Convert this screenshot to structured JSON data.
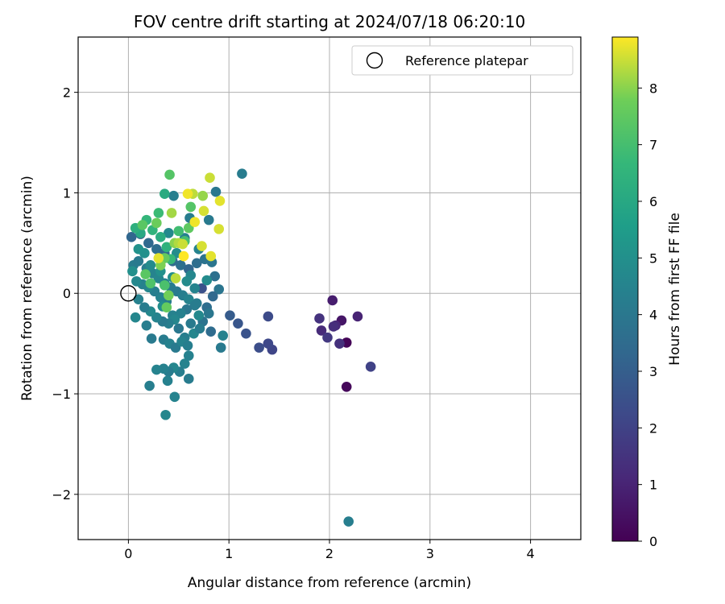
{
  "chart_data": {
    "type": "scatter",
    "title": "FOV centre drift starting at 2024/07/18 06:20:10",
    "xlabel": "Angular distance from reference (arcmin)",
    "ylabel": "Rotation from reference (arcmin)",
    "xlim": [
      -0.5,
      4.5
    ],
    "ylim": [
      -2.45,
      2.55
    ],
    "xticks": [
      0,
      1,
      2,
      3,
      4
    ],
    "yticks": [
      -2,
      -1,
      0,
      1,
      2
    ],
    "xtick_labels": [
      "0",
      "1",
      "2",
      "3",
      "4"
    ],
    "ytick_labels": [
      "−2",
      "−1",
      "0",
      "1",
      "2"
    ],
    "grid": true,
    "colormap": "viridis",
    "colorbar": {
      "label": "Hours from first FF file",
      "range": [
        0,
        8.9
      ],
      "ticks": [
        0,
        1,
        2,
        3,
        4,
        5,
        6,
        7,
        8
      ],
      "tick_labels": [
        "0",
        "1",
        "2",
        "3",
        "4",
        "5",
        "6",
        "7",
        "8"
      ]
    },
    "legend": {
      "position": "top-right",
      "label": "Reference platepar",
      "marker": "open-circle"
    },
    "reference_point": {
      "x": 0,
      "y": 0
    },
    "series": [
      {
        "name": "FOV centre drift",
        "points": [
          {
            "x": 2.17,
            "y": -0.49,
            "h": 0.1
          },
          {
            "x": 2.17,
            "y": -0.93,
            "h": 0.2
          },
          {
            "x": 2.12,
            "y": -0.27,
            "h": 0.6
          },
          {
            "x": 2.03,
            "y": -0.07,
            "h": 0.8
          },
          {
            "x": 2.28,
            "y": -0.23,
            "h": 1.0
          },
          {
            "x": 2.06,
            "y": -0.32,
            "h": 1.1
          },
          {
            "x": 1.92,
            "y": -0.37,
            "h": 1.2
          },
          {
            "x": 2.1,
            "y": -0.5,
            "h": 1.4
          },
          {
            "x": 1.9,
            "y": -0.25,
            "h": 1.5
          },
          {
            "x": 1.98,
            "y": -0.44,
            "h": 1.7
          },
          {
            "x": 2.04,
            "y": -0.33,
            "h": 1.3
          },
          {
            "x": 2.41,
            "y": -0.73,
            "h": 2.0
          },
          {
            "x": 1.43,
            "y": -0.56,
            "h": 2.1
          },
          {
            "x": 1.39,
            "y": -0.5,
            "h": 2.2
          },
          {
            "x": 1.39,
            "y": -0.23,
            "h": 2.3
          },
          {
            "x": 1.3,
            "y": -0.54,
            "h": 2.4
          },
          {
            "x": 1.17,
            "y": -0.4,
            "h": 2.6
          },
          {
            "x": 1.09,
            "y": -0.3,
            "h": 2.7
          },
          {
            "x": 1.01,
            "y": -0.22,
            "h": 2.9
          },
          {
            "x": 0.73,
            "y": 0.05,
            "h": 2.5
          },
          {
            "x": 0.12,
            "y": 0.59,
            "h": 3.2
          },
          {
            "x": 0.03,
            "y": 0.56,
            "h": 3.3
          },
          {
            "x": 0.2,
            "y": 0.5,
            "h": 3.4
          },
          {
            "x": 0.28,
            "y": 0.44,
            "h": 3.6
          },
          {
            "x": 0.36,
            "y": 0.4,
            "h": 3.4
          },
          {
            "x": 0.44,
            "y": 0.32,
            "h": 3.5
          },
          {
            "x": 0.52,
            "y": 0.28,
            "h": 3.7
          },
          {
            "x": 0.6,
            "y": 0.24,
            "h": 3.3
          },
          {
            "x": 0.68,
            "y": 0.3,
            "h": 3.6
          },
          {
            "x": 0.76,
            "y": 0.34,
            "h": 3.8
          },
          {
            "x": 0.83,
            "y": 0.31,
            "h": 3.9
          },
          {
            "x": 0.86,
            "y": 0.17,
            "h": 3.7
          },
          {
            "x": 0.9,
            "y": 0.04,
            "h": 3.9
          },
          {
            "x": 0.84,
            "y": -0.03,
            "h": 3.4
          },
          {
            "x": 0.78,
            "y": -0.14,
            "h": 3.6
          },
          {
            "x": 0.8,
            "y": -0.2,
            "h": 4.0
          },
          {
            "x": 0.82,
            "y": -0.38,
            "h": 3.5
          },
          {
            "x": 0.74,
            "y": -0.28,
            "h": 3.8
          },
          {
            "x": 0.68,
            "y": -0.1,
            "h": 4.2
          },
          {
            "x": 0.62,
            "y": -0.3,
            "h": 4.1
          },
          {
            "x": 0.56,
            "y": -0.44,
            "h": 4.3
          },
          {
            "x": 0.5,
            "y": -0.35,
            "h": 4.0
          },
          {
            "x": 0.44,
            "y": -0.22,
            "h": 4.4
          },
          {
            "x": 0.38,
            "y": -0.08,
            "h": 4.2
          },
          {
            "x": 0.32,
            "y": -0.04,
            "h": 4.5
          },
          {
            "x": 0.26,
            "y": 0.02,
            "h": 4.3
          },
          {
            "x": 0.2,
            "y": 0.06,
            "h": 4.6
          },
          {
            "x": 0.14,
            "y": 0.09,
            "h": 4.4
          },
          {
            "x": 0.08,
            "y": 0.12,
            "h": 4.7
          },
          {
            "x": 0.05,
            "y": 0.28,
            "h": 4.2
          },
          {
            "x": 0.1,
            "y": 0.32,
            "h": 4.1
          },
          {
            "x": 0.18,
            "y": 0.25,
            "h": 4.3
          },
          {
            "x": 0.24,
            "y": 0.2,
            "h": 4.5
          },
          {
            "x": 0.3,
            "y": 0.15,
            "h": 4.6
          },
          {
            "x": 0.36,
            "y": 0.1,
            "h": 4.4
          },
          {
            "x": 0.42,
            "y": 0.06,
            "h": 4.2
          },
          {
            "x": 0.48,
            "y": 0.02,
            "h": 4.1
          },
          {
            "x": 0.54,
            "y": -0.02,
            "h": 4.3
          },
          {
            "x": 0.6,
            "y": -0.06,
            "h": 4.5
          },
          {
            "x": 0.66,
            "y": -0.12,
            "h": 4.2
          },
          {
            "x": 0.58,
            "y": -0.16,
            "h": 4.0
          },
          {
            "x": 0.52,
            "y": -0.2,
            "h": 4.4
          },
          {
            "x": 0.46,
            "y": -0.26,
            "h": 4.6
          },
          {
            "x": 0.4,
            "y": -0.3,
            "h": 4.3
          },
          {
            "x": 0.34,
            "y": -0.28,
            "h": 4.1
          },
          {
            "x": 0.28,
            "y": -0.24,
            "h": 4.5
          },
          {
            "x": 0.22,
            "y": -0.18,
            "h": 4.7
          },
          {
            "x": 0.16,
            "y": -0.14,
            "h": 4.2
          },
          {
            "x": 0.1,
            "y": -0.06,
            "h": 4.4
          },
          {
            "x": 0.35,
            "y": -0.46,
            "h": 4.2
          },
          {
            "x": 0.41,
            "y": -0.5,
            "h": 4.4
          },
          {
            "x": 0.47,
            "y": -0.54,
            "h": 4.1
          },
          {
            "x": 0.53,
            "y": -0.48,
            "h": 4.5
          },
          {
            "x": 0.59,
            "y": -0.52,
            "h": 4.3
          },
          {
            "x": 0.65,
            "y": -0.4,
            "h": 4.6
          },
          {
            "x": 0.71,
            "y": -0.35,
            "h": 4.2
          },
          {
            "x": 0.6,
            "y": -0.62,
            "h": 4.4
          },
          {
            "x": 0.56,
            "y": -0.7,
            "h": 4.5
          },
          {
            "x": 0.51,
            "y": -0.78,
            "h": 4.3
          },
          {
            "x": 0.45,
            "y": -0.74,
            "h": 4.6
          },
          {
            "x": 0.4,
            "y": -0.78,
            "h": 4.2
          },
          {
            "x": 0.35,
            "y": -0.75,
            "h": 4.4
          },
          {
            "x": 0.28,
            "y": -0.76,
            "h": 4.5
          },
          {
            "x": 0.23,
            "y": -0.45,
            "h": 4.1
          },
          {
            "x": 0.18,
            "y": -0.32,
            "h": 4.3
          },
          {
            "x": 0.07,
            "y": -0.24,
            "h": 4.6
          },
          {
            "x": 0.39,
            "y": -0.87,
            "h": 4.4
          },
          {
            "x": 0.6,
            "y": -0.85,
            "h": 4.2
          },
          {
            "x": 0.46,
            "y": -1.03,
            "h": 4.5
          },
          {
            "x": 0.21,
            "y": -0.92,
            "h": 4.3
          },
          {
            "x": 0.37,
            "y": -1.21,
            "h": 4.6
          },
          {
            "x": 0.92,
            "y": -0.54,
            "h": 4.1
          },
          {
            "x": 0.94,
            "y": -0.42,
            "h": 4.4
          },
          {
            "x": 2.19,
            "y": -2.27,
            "h": 4.3
          },
          {
            "x": 1.13,
            "y": 1.19,
            "h": 4.2
          },
          {
            "x": 0.87,
            "y": 1.01,
            "h": 4.0
          },
          {
            "x": 0.45,
            "y": 0.97,
            "h": 4.3
          },
          {
            "x": 0.8,
            "y": 0.73,
            "h": 4.1
          },
          {
            "x": 0.61,
            "y": 0.75,
            "h": 4.2
          },
          {
            "x": 0.56,
            "y": 0.55,
            "h": 4.4
          },
          {
            "x": 0.7,
            "y": 0.44,
            "h": 4.5
          },
          {
            "x": 0.62,
            "y": 0.18,
            "h": 4.6
          },
          {
            "x": 0.66,
            "y": 0.05,
            "h": 4.5
          },
          {
            "x": 0.7,
            "y": -0.22,
            "h": 4.7
          },
          {
            "x": 0.58,
            "y": 0.12,
            "h": 4.8
          },
          {
            "x": 0.44,
            "y": 0.16,
            "h": 4.9
          },
          {
            "x": 0.32,
            "y": 0.22,
            "h": 5.0
          },
          {
            "x": 0.22,
            "y": 0.28,
            "h": 4.8
          },
          {
            "x": 0.16,
            "y": 0.4,
            "h": 5.0
          },
          {
            "x": 0.1,
            "y": 0.44,
            "h": 5.1
          },
          {
            "x": 0.04,
            "y": 0.22,
            "h": 5.0
          },
          {
            "x": 0.4,
            "y": 0.6,
            "h": 4.7
          },
          {
            "x": 0.48,
            "y": 0.4,
            "h": 4.9
          },
          {
            "x": 0.78,
            "y": 0.13,
            "h": 4.8
          },
          {
            "x": 0.34,
            "y": -0.13,
            "h": 4.9
          },
          {
            "x": 0.12,
            "y": 0.6,
            "h": 6.0
          },
          {
            "x": 0.07,
            "y": 0.65,
            "h": 6.3
          },
          {
            "x": 0.18,
            "y": 0.73,
            "h": 6.6
          },
          {
            "x": 0.36,
            "y": 0.99,
            "h": 6.1
          },
          {
            "x": 0.3,
            "y": 0.8,
            "h": 6.8
          },
          {
            "x": 0.24,
            "y": 0.63,
            "h": 6.5
          },
          {
            "x": 0.32,
            "y": 0.56,
            "h": 6.2
          },
          {
            "x": 0.38,
            "y": 0.46,
            "h": 6.4
          },
          {
            "x": 0.42,
            "y": 0.34,
            "h": 6.7
          },
          {
            "x": 0.5,
            "y": 0.62,
            "h": 6.9
          },
          {
            "x": 0.56,
            "y": 0.52,
            "h": 7.0
          },
          {
            "x": 0.41,
            "y": 1.18,
            "h": 7.3
          },
          {
            "x": 0.62,
            "y": 0.86,
            "h": 7.3
          },
          {
            "x": 0.6,
            "y": 0.65,
            "h": 7.5
          },
          {
            "x": 0.36,
            "y": 0.35,
            "h": 7.6
          },
          {
            "x": 0.14,
            "y": 0.68,
            "h": 7.4
          },
          {
            "x": 0.28,
            "y": 0.7,
            "h": 7.7
          },
          {
            "x": 0.22,
            "y": 0.1,
            "h": 7.2
          },
          {
            "x": 0.17,
            "y": 0.19,
            "h": 7.4
          },
          {
            "x": 0.36,
            "y": 0.08,
            "h": 7.1
          },
          {
            "x": 0.38,
            "y": -0.14,
            "h": 7.6
          },
          {
            "x": 0.4,
            "y": -0.02,
            "h": 7.8
          },
          {
            "x": 0.32,
            "y": 0.28,
            "h": 7.9
          },
          {
            "x": 0.46,
            "y": 0.5,
            "h": 8.0
          },
          {
            "x": 0.43,
            "y": 0.8,
            "h": 8.2
          },
          {
            "x": 0.5,
            "y": 0.5,
            "h": 8.3
          },
          {
            "x": 0.64,
            "y": 0.99,
            "h": 8.4
          },
          {
            "x": 0.74,
            "y": 0.97,
            "h": 8.1
          },
          {
            "x": 0.81,
            "y": 1.15,
            "h": 8.5
          },
          {
            "x": 0.9,
            "y": 0.64,
            "h": 8.6
          },
          {
            "x": 0.91,
            "y": 0.92,
            "h": 8.7
          },
          {
            "x": 0.75,
            "y": 0.82,
            "h": 8.6
          },
          {
            "x": 0.66,
            "y": 0.71,
            "h": 8.8
          },
          {
            "x": 0.59,
            "y": 0.99,
            "h": 8.8
          },
          {
            "x": 0.54,
            "y": 0.49,
            "h": 8.5
          },
          {
            "x": 0.47,
            "y": 0.15,
            "h": 8.4
          },
          {
            "x": 0.73,
            "y": 0.47,
            "h": 8.6
          },
          {
            "x": 0.82,
            "y": 0.37,
            "h": 8.7
          },
          {
            "x": 0.55,
            "y": 0.37,
            "h": 8.9
          },
          {
            "x": 0.3,
            "y": 0.35,
            "h": 8.7
          }
        ]
      }
    ]
  }
}
